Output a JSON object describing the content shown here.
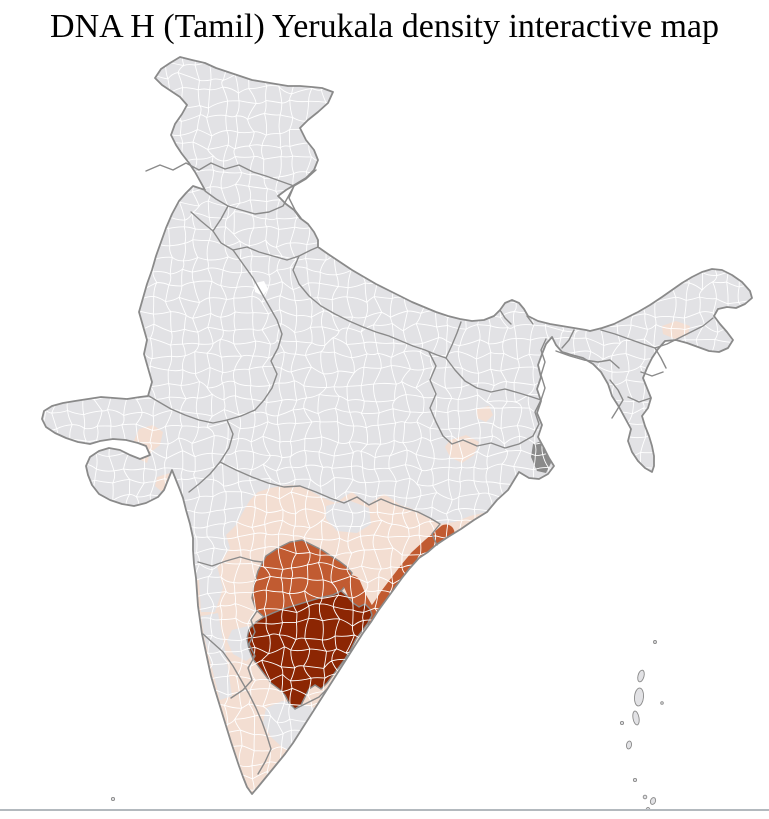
{
  "page": {
    "title": "DNA H (Tamil) Yerukala density interactive map",
    "background_color": "#ffffff",
    "divider_color": "#b3b9be"
  },
  "map": {
    "type": "choropleth",
    "colors": {
      "no_data": "#e2e2e5",
      "low": "#f3ded2",
      "medium": "#c15b31",
      "high": "#8c2603",
      "district_border": "#ffffff",
      "state_border": "#8a8a8a",
      "country_outline": "#8a8a8a",
      "delta_shade": "#8a8a8a",
      "highlight_white": "#ffffff"
    },
    "levels": [
      {
        "id": "high",
        "color": "#8c2603"
      },
      {
        "id": "medium",
        "color": "#c15b31"
      },
      {
        "id": "low",
        "color": "#f3ded2"
      },
      {
        "id": "no_data",
        "color": "#e2e2e5"
      }
    ],
    "regions": [
      {
        "name": "rest-of-india",
        "level": "no_data"
      },
      {
        "name": "deccan-peninsula-band",
        "level": "low"
      },
      {
        "name": "telangana-block",
        "level": "medium"
      },
      {
        "name": "coastal-andhra-strip",
        "level": "medium"
      },
      {
        "name": "south-andhra-rayalaseema-block",
        "level": "high"
      },
      {
        "name": "gujarat-district-a",
        "level": "low"
      },
      {
        "name": "gujarat-district-b",
        "level": "low"
      },
      {
        "name": "jharkhand-district-a",
        "level": "low"
      },
      {
        "name": "jharkhand-district-b",
        "level": "low"
      },
      {
        "name": "assam-districts",
        "level": "low"
      },
      {
        "name": "sundarbans-delta",
        "level": "no_data"
      },
      {
        "name": "rajasthan-white-district",
        "level": "no_data"
      }
    ]
  }
}
